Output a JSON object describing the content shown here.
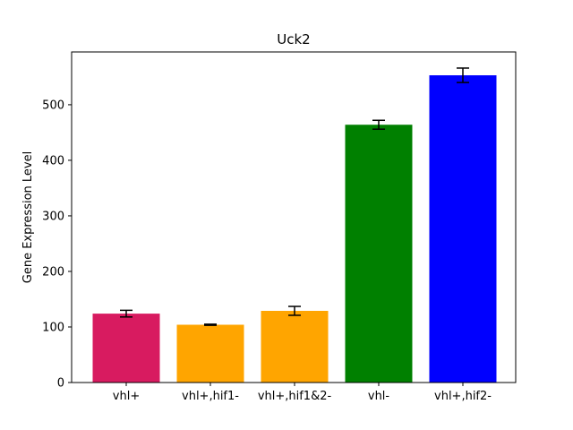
{
  "chart_data": {
    "type": "bar",
    "title": "Uck2",
    "xlabel": "",
    "ylabel": "Gene Expression Level",
    "categories": [
      "vhl+",
      "vhl+,hif1-",
      "vhl+,hif1&2-",
      "vhl-",
      "vhl+,hif2-"
    ],
    "values": [
      124,
      104,
      129,
      464,
      553
    ],
    "errors": [
      6,
      1,
      8,
      8,
      13
    ],
    "colors": [
      "#d81b60",
      "#ffa500",
      "#ffa500",
      "#008000",
      "#0000ff"
    ],
    "ylim": [
      0,
      595
    ],
    "yticks": [
      0,
      100,
      200,
      300,
      400,
      500
    ],
    "grid": false
  }
}
